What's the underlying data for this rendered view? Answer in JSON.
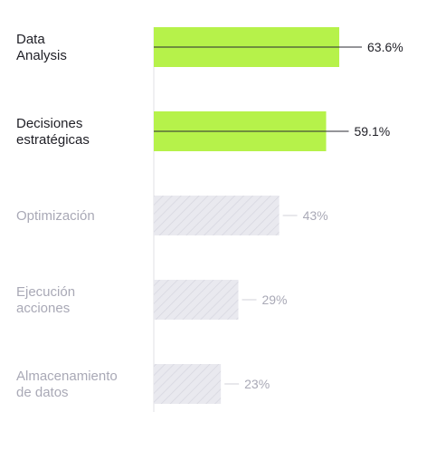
{
  "chart_data": {
    "type": "bar",
    "orientation": "horizontal",
    "categories": [
      [
        "Data",
        "Analysis"
      ],
      [
        "Decisiones",
        "estratégicas"
      ],
      [
        "Optimización"
      ],
      [
        "Ejecución",
        "acciones"
      ],
      [
        "Almacenamiento",
        "de datos"
      ]
    ],
    "values": [
      63.6,
      59.1,
      43,
      29,
      23
    ],
    "value_labels": [
      "63.6%",
      "59.1%",
      "43%",
      "29%",
      "23%"
    ],
    "highlighted": [
      true,
      true,
      false,
      false,
      false
    ],
    "title": "",
    "xlabel": "",
    "ylabel": "",
    "xlim": [
      0,
      100
    ],
    "grid": false,
    "legend": "none",
    "colors": {
      "highlight_fill": "#b6f24a",
      "muted_fill": "#e9e9ef",
      "muted_hatch": "#d5d5de",
      "highlight_text": "#1f1f26",
      "muted_text": "#a9a9b6",
      "axis": "#e0e0e6",
      "leader_highlight": "#2b2b33",
      "leader_muted": "#d2d2da"
    }
  }
}
